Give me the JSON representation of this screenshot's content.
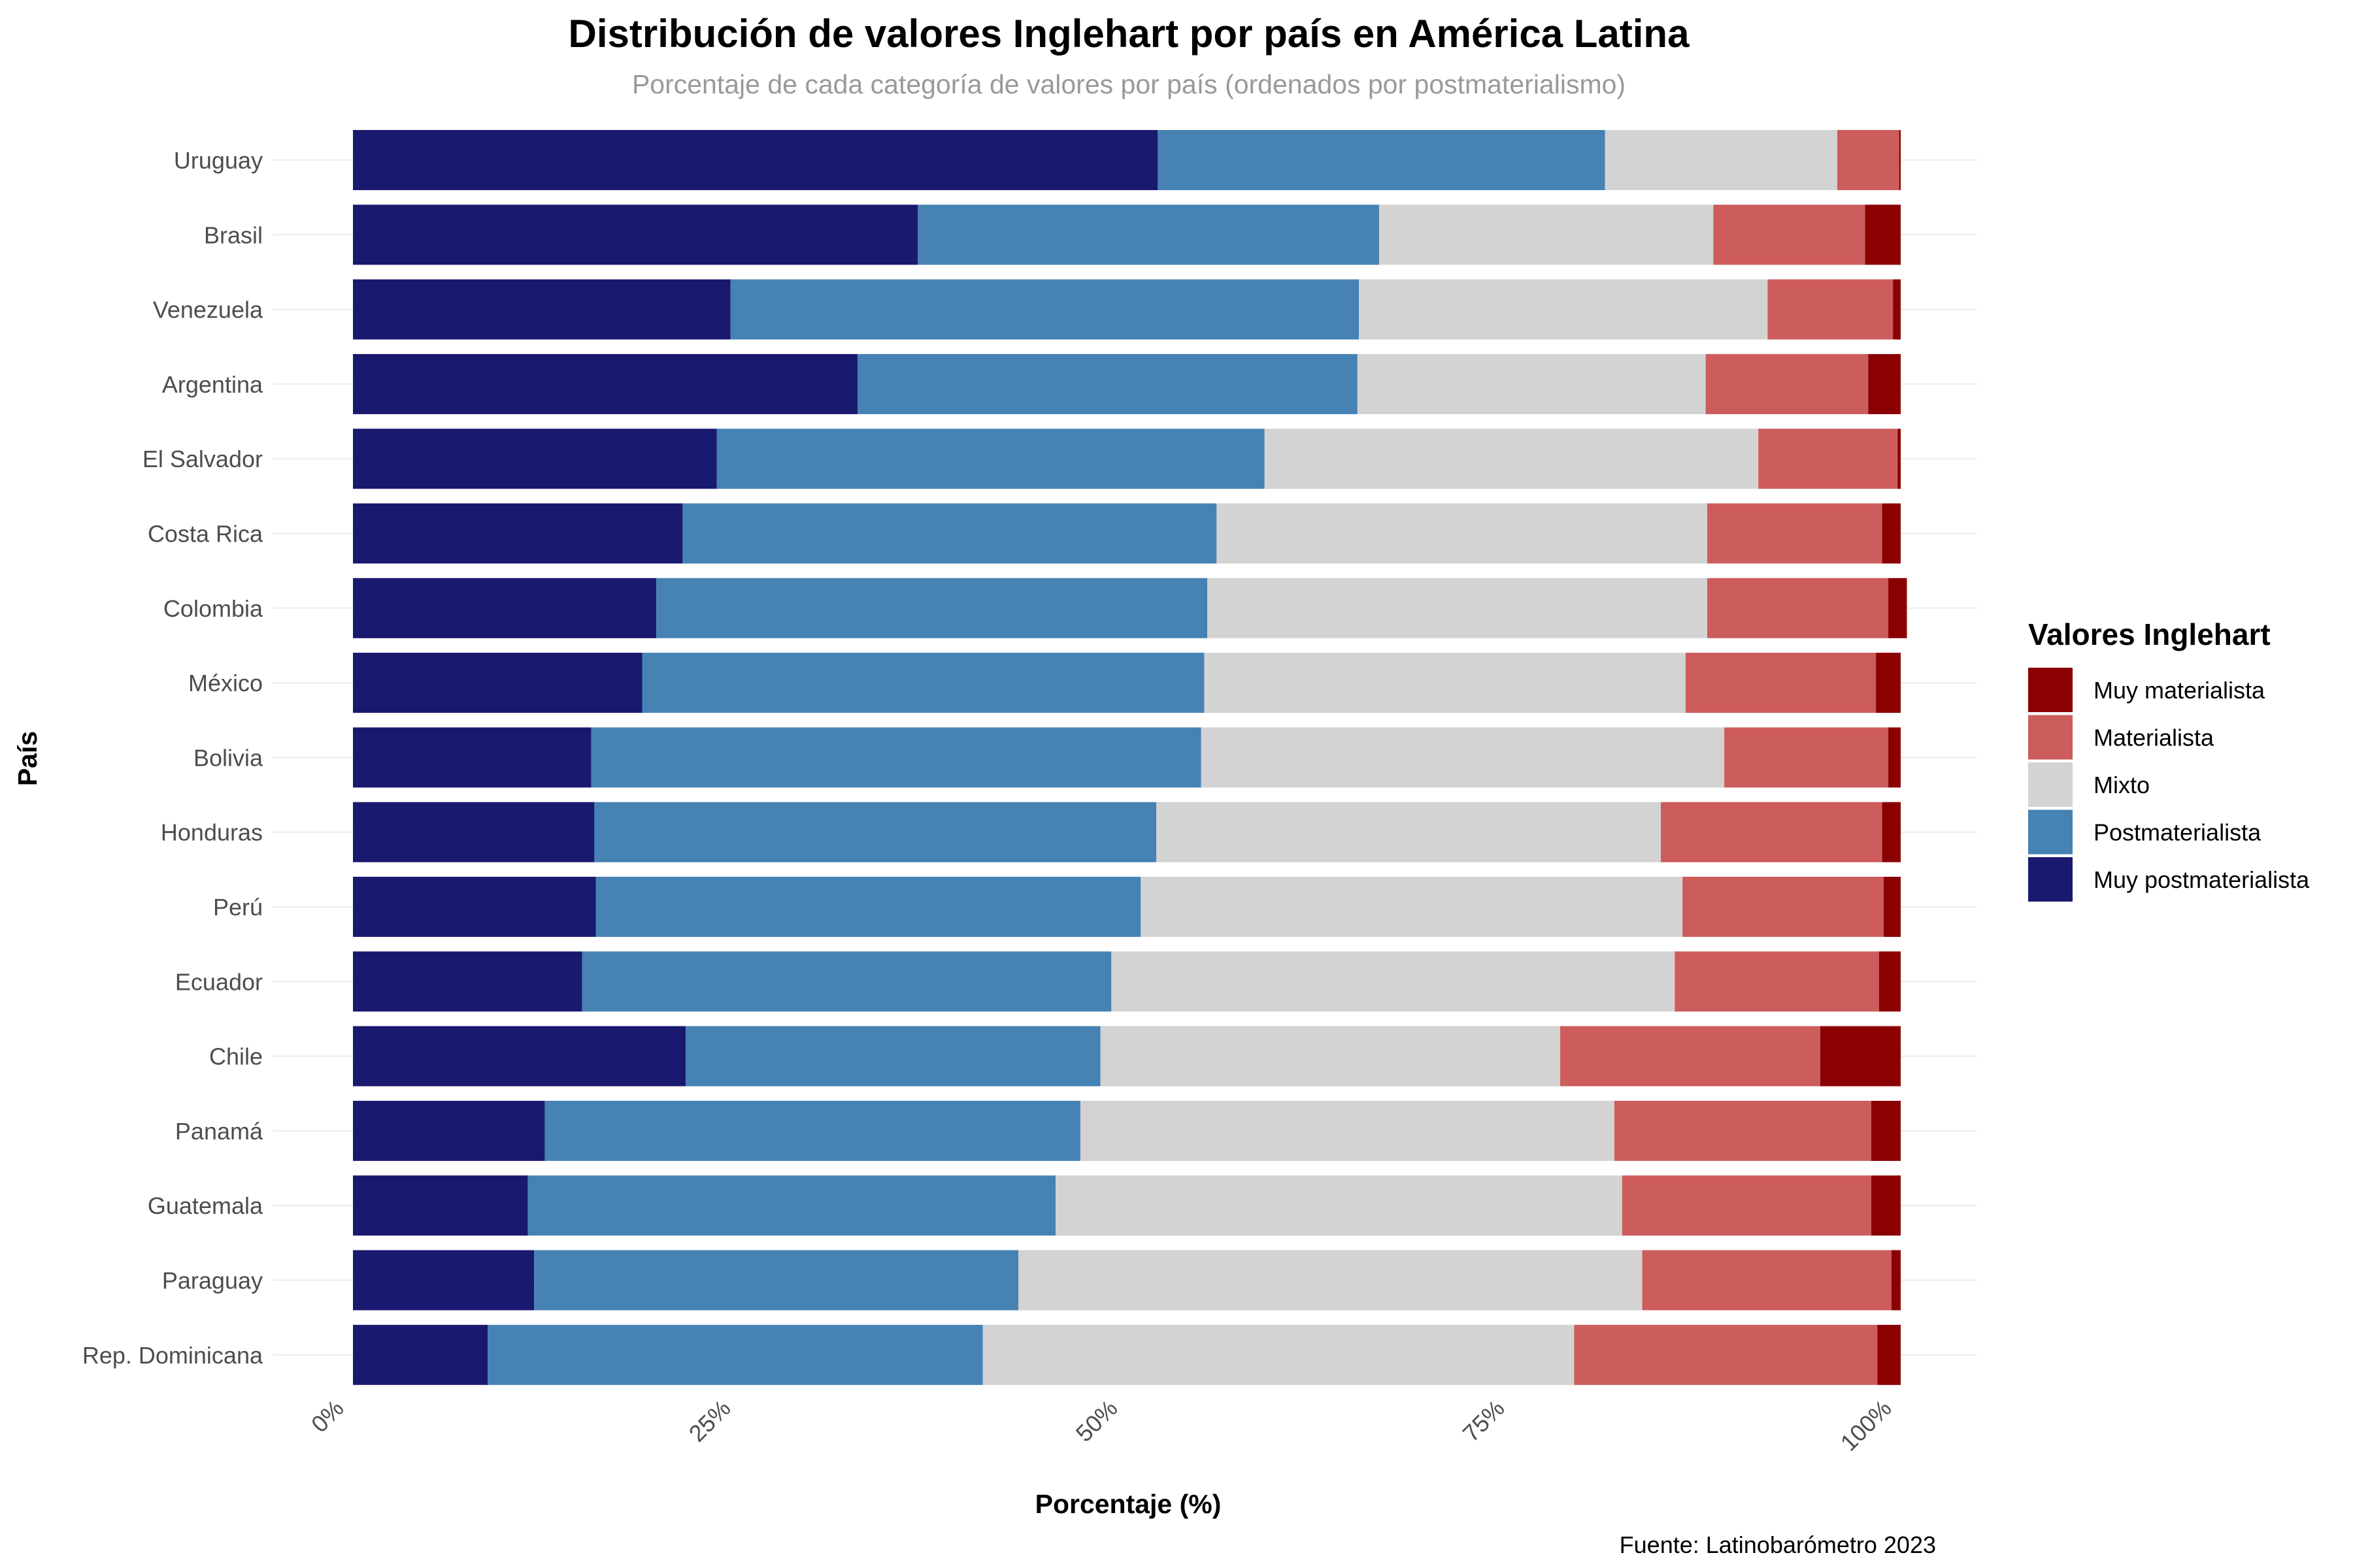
{
  "chart_data": {
    "type": "bar",
    "orientation": "horizontal",
    "stacked": true,
    "title": "Distribución de valores Inglehart por país en América Latina",
    "subtitle": "Porcentaje de cada categoría de valores por país (ordenados por postmaterialismo)",
    "xlabel": "Porcentaje (%)",
    "ylabel": "País",
    "caption": "Fuente: Latinobarómetro 2023",
    "xlim": [
      0,
      100
    ],
    "x_ticks": [
      0,
      25,
      50,
      75,
      100
    ],
    "x_tick_labels": [
      "0%",
      "25%",
      "50%",
      "75%",
      "100%"
    ],
    "grid": true,
    "legend_position": "right",
    "legend_title": "Valores Inglehart",
    "categories": [
      "Uruguay",
      "Brasil",
      "Venezuela",
      "Argentina",
      "El Salvador",
      "Costa Rica",
      "Colombia",
      "México",
      "Bolivia",
      "Honduras",
      "Perú",
      "Ecuador",
      "Chile",
      "Panamá",
      "Guatemala",
      "Paraguay",
      "Rep. Dominicana"
    ],
    "stack_order": [
      "Muy postmaterialista",
      "Postmaterialista",
      "Mixto",
      "Materialista",
      "Muy materialista"
    ],
    "series": [
      {
        "name": "Muy materialista",
        "color": "#8B0000",
        "values": [
          0.1,
          2.3,
          0.5,
          2.1,
          0.2,
          1.2,
          1.2,
          1.6,
          0.8,
          1.2,
          1.1,
          1.4,
          5.2,
          1.9,
          1.9,
          0.6,
          1.5
        ]
      },
      {
        "name": "Materialista",
        "color": "#CD5C5C",
        "values": [
          4.0,
          9.8,
          8.1,
          10.5,
          9.0,
          11.3,
          11.7,
          12.3,
          10.6,
          14.3,
          13.0,
          13.2,
          16.8,
          16.6,
          16.1,
          16.1,
          19.6
        ]
      },
      {
        "name": "Mixto",
        "color": "#D3D3D3",
        "values": [
          15.0,
          21.6,
          26.4,
          22.5,
          31.9,
          31.7,
          32.3,
          31.1,
          33.8,
          32.6,
          35.0,
          36.4,
          29.7,
          34.5,
          36.6,
          40.3,
          38.2
        ]
      },
      {
        "name": "Postmaterialista",
        "color": "#4682B4",
        "values": [
          28.9,
          29.8,
          40.6,
          32.3,
          35.4,
          34.5,
          35.6,
          36.3,
          39.4,
          36.3,
          35.2,
          34.2,
          26.8,
          34.6,
          34.1,
          31.3,
          32.0
        ]
      },
      {
        "name": "Muy postmaterialista",
        "color": "#191970",
        "values": [
          52.0,
          36.5,
          24.4,
          32.6,
          23.5,
          21.3,
          19.6,
          18.7,
          15.4,
          15.6,
          15.7,
          14.8,
          21.5,
          12.4,
          11.3,
          11.7,
          8.7
        ]
      }
    ]
  }
}
